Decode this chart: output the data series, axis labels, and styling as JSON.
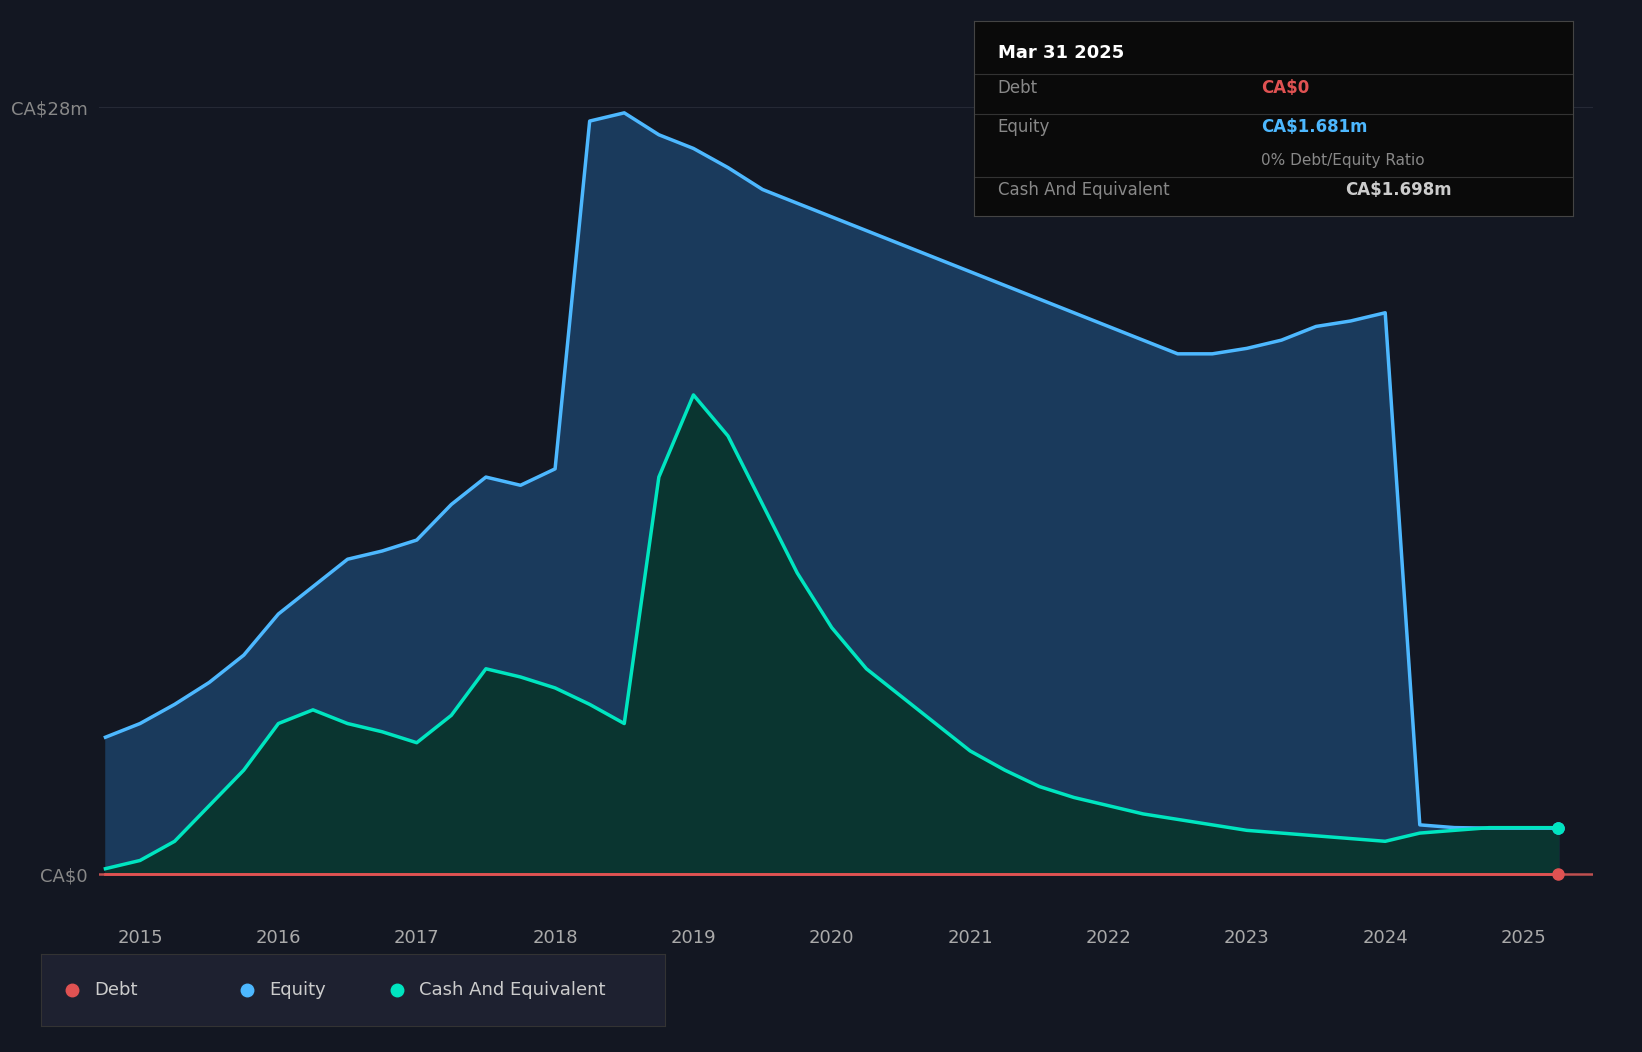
{
  "background_color": "#131722",
  "plot_bg_color": "#131722",
  "grid_color": "#2a2e3a",
  "ylabel_ca0": "CA$0",
  "ylabel_ca28": "CA$28m",
  "ylim": [
    -1.5,
    30
  ],
  "xlim": [
    2014.7,
    2025.5
  ],
  "equity_color": "#4db8ff",
  "equity_fill": "#1a3a5c",
  "cash_color": "#00e5c0",
  "cash_fill": "#0a3530",
  "debt_color": "#e05252",
  "legend_bg": "#1e2130",
  "tooltip_bg": "#0a0a0a",
  "tooltip_border": "#444444",
  "years": [
    2014.75,
    2015.0,
    2015.25,
    2015.5,
    2015.75,
    2016.0,
    2016.25,
    2016.5,
    2016.75,
    2017.0,
    2017.25,
    2017.5,
    2017.75,
    2018.0,
    2018.25,
    2018.5,
    2018.75,
    2019.0,
    2019.25,
    2019.5,
    2019.75,
    2020.0,
    2020.25,
    2020.5,
    2020.75,
    2021.0,
    2021.25,
    2021.5,
    2021.75,
    2022.0,
    2022.25,
    2022.5,
    2022.75,
    2023.0,
    2023.25,
    2023.5,
    2023.75,
    2024.0,
    2024.25,
    2024.5,
    2024.75,
    2025.0,
    2025.25
  ],
  "equity": [
    5.0,
    5.5,
    6.2,
    7.0,
    8.0,
    9.5,
    10.5,
    11.5,
    11.8,
    12.2,
    13.5,
    14.5,
    14.2,
    14.8,
    27.5,
    27.8,
    27.0,
    26.5,
    25.8,
    25.0,
    24.5,
    24.0,
    23.5,
    23.0,
    22.5,
    22.0,
    21.5,
    21.0,
    20.5,
    20.0,
    19.5,
    19.0,
    19.0,
    19.2,
    19.5,
    20.0,
    20.2,
    20.5,
    1.8,
    1.7,
    1.681,
    1.681,
    1.681
  ],
  "cash": [
    0.2,
    0.5,
    1.2,
    2.5,
    3.8,
    5.5,
    6.0,
    5.5,
    5.2,
    4.8,
    5.8,
    7.5,
    7.2,
    6.8,
    6.2,
    5.5,
    14.5,
    17.5,
    16.0,
    13.5,
    11.0,
    9.0,
    7.5,
    6.5,
    5.5,
    4.5,
    3.8,
    3.2,
    2.8,
    2.5,
    2.2,
    2.0,
    1.8,
    1.6,
    1.5,
    1.4,
    1.3,
    1.2,
    1.5,
    1.6,
    1.698,
    1.698,
    1.698
  ],
  "debt": [
    0.0,
    0.0,
    0.0,
    0.0,
    0.0,
    0.0,
    0.0,
    0.0,
    0.0,
    0.0,
    0.0,
    0.0,
    0.0,
    0.0,
    0.0,
    0.0,
    0.0,
    0.0,
    0.0,
    0.0,
    0.0,
    0.0,
    0.0,
    0.0,
    0.0,
    0.0,
    0.0,
    0.0,
    0.0,
    0.0,
    0.0,
    0.0,
    0.0,
    0.0,
    0.0,
    0.0,
    0.0,
    0.0,
    0.0,
    0.0,
    0.0,
    0.0,
    0.0
  ],
  "xticks": [
    2015,
    2016,
    2017,
    2018,
    2019,
    2020,
    2021,
    2022,
    2023,
    2024,
    2025
  ],
  "tooltip_date": "Mar 31 2025",
  "tooltip_debt_label": "Debt",
  "tooltip_debt_value": "CA$0",
  "tooltip_equity_label": "Equity",
  "tooltip_equity_value": "CA$1.681m",
  "tooltip_ratio": "0% Debt/Equity Ratio",
  "tooltip_cash_label": "Cash And Equivalent",
  "tooltip_cash_value": "CA$1.698m",
  "legend_items": [
    "Debt",
    "Equity",
    "Cash And Equivalent"
  ],
  "legend_colors": [
    "#e05252",
    "#4db8ff",
    "#00e5c0"
  ]
}
